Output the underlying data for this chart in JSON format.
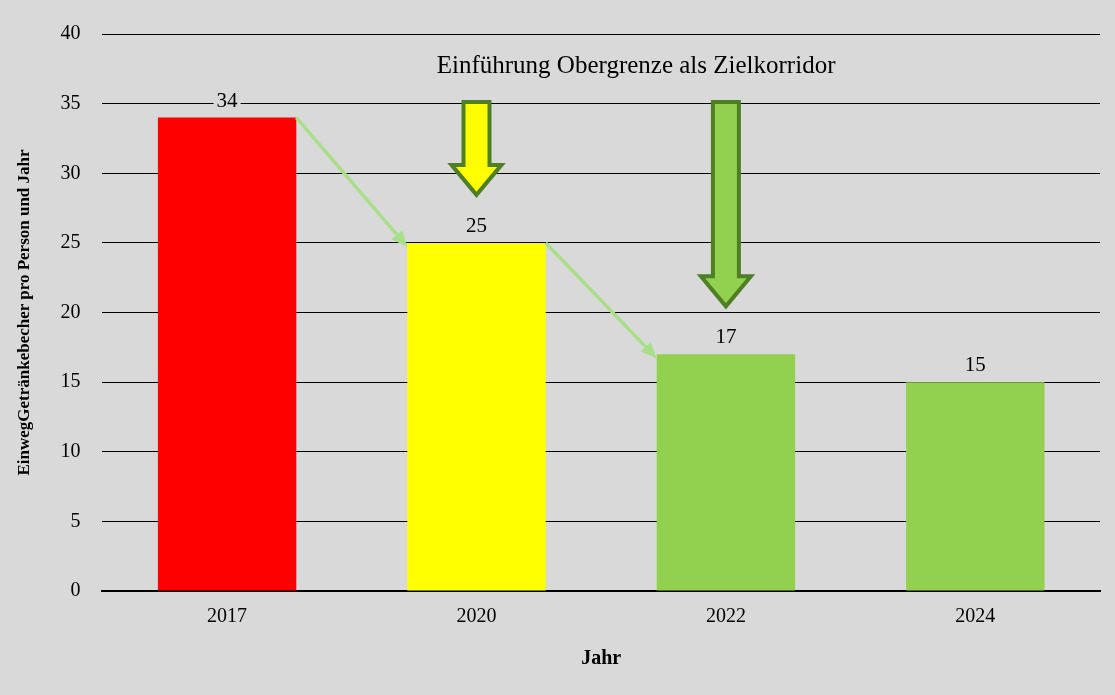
{
  "chart_data": {
    "type": "bar",
    "annotations": [
      "Einführung Obergrenze als Zielkorridor"
    ],
    "xlabel": "Jahr",
    "ylabel": "EinwegGetränkebecher pro Person und Jahr",
    "categories": [
      "2017",
      "2020",
      "2022",
      "2024"
    ],
    "values": [
      34,
      25,
      17,
      15
    ],
    "colors": [
      "#ff0000",
      "#ffff00",
      "#92d050",
      "#92d050"
    ],
    "ylim": [
      0,
      40
    ],
    "yticks": [
      0,
      5,
      10,
      15,
      20,
      25,
      30,
      35,
      40
    ],
    "grid": "y",
    "data_labels": true,
    "legend": false
  }
}
